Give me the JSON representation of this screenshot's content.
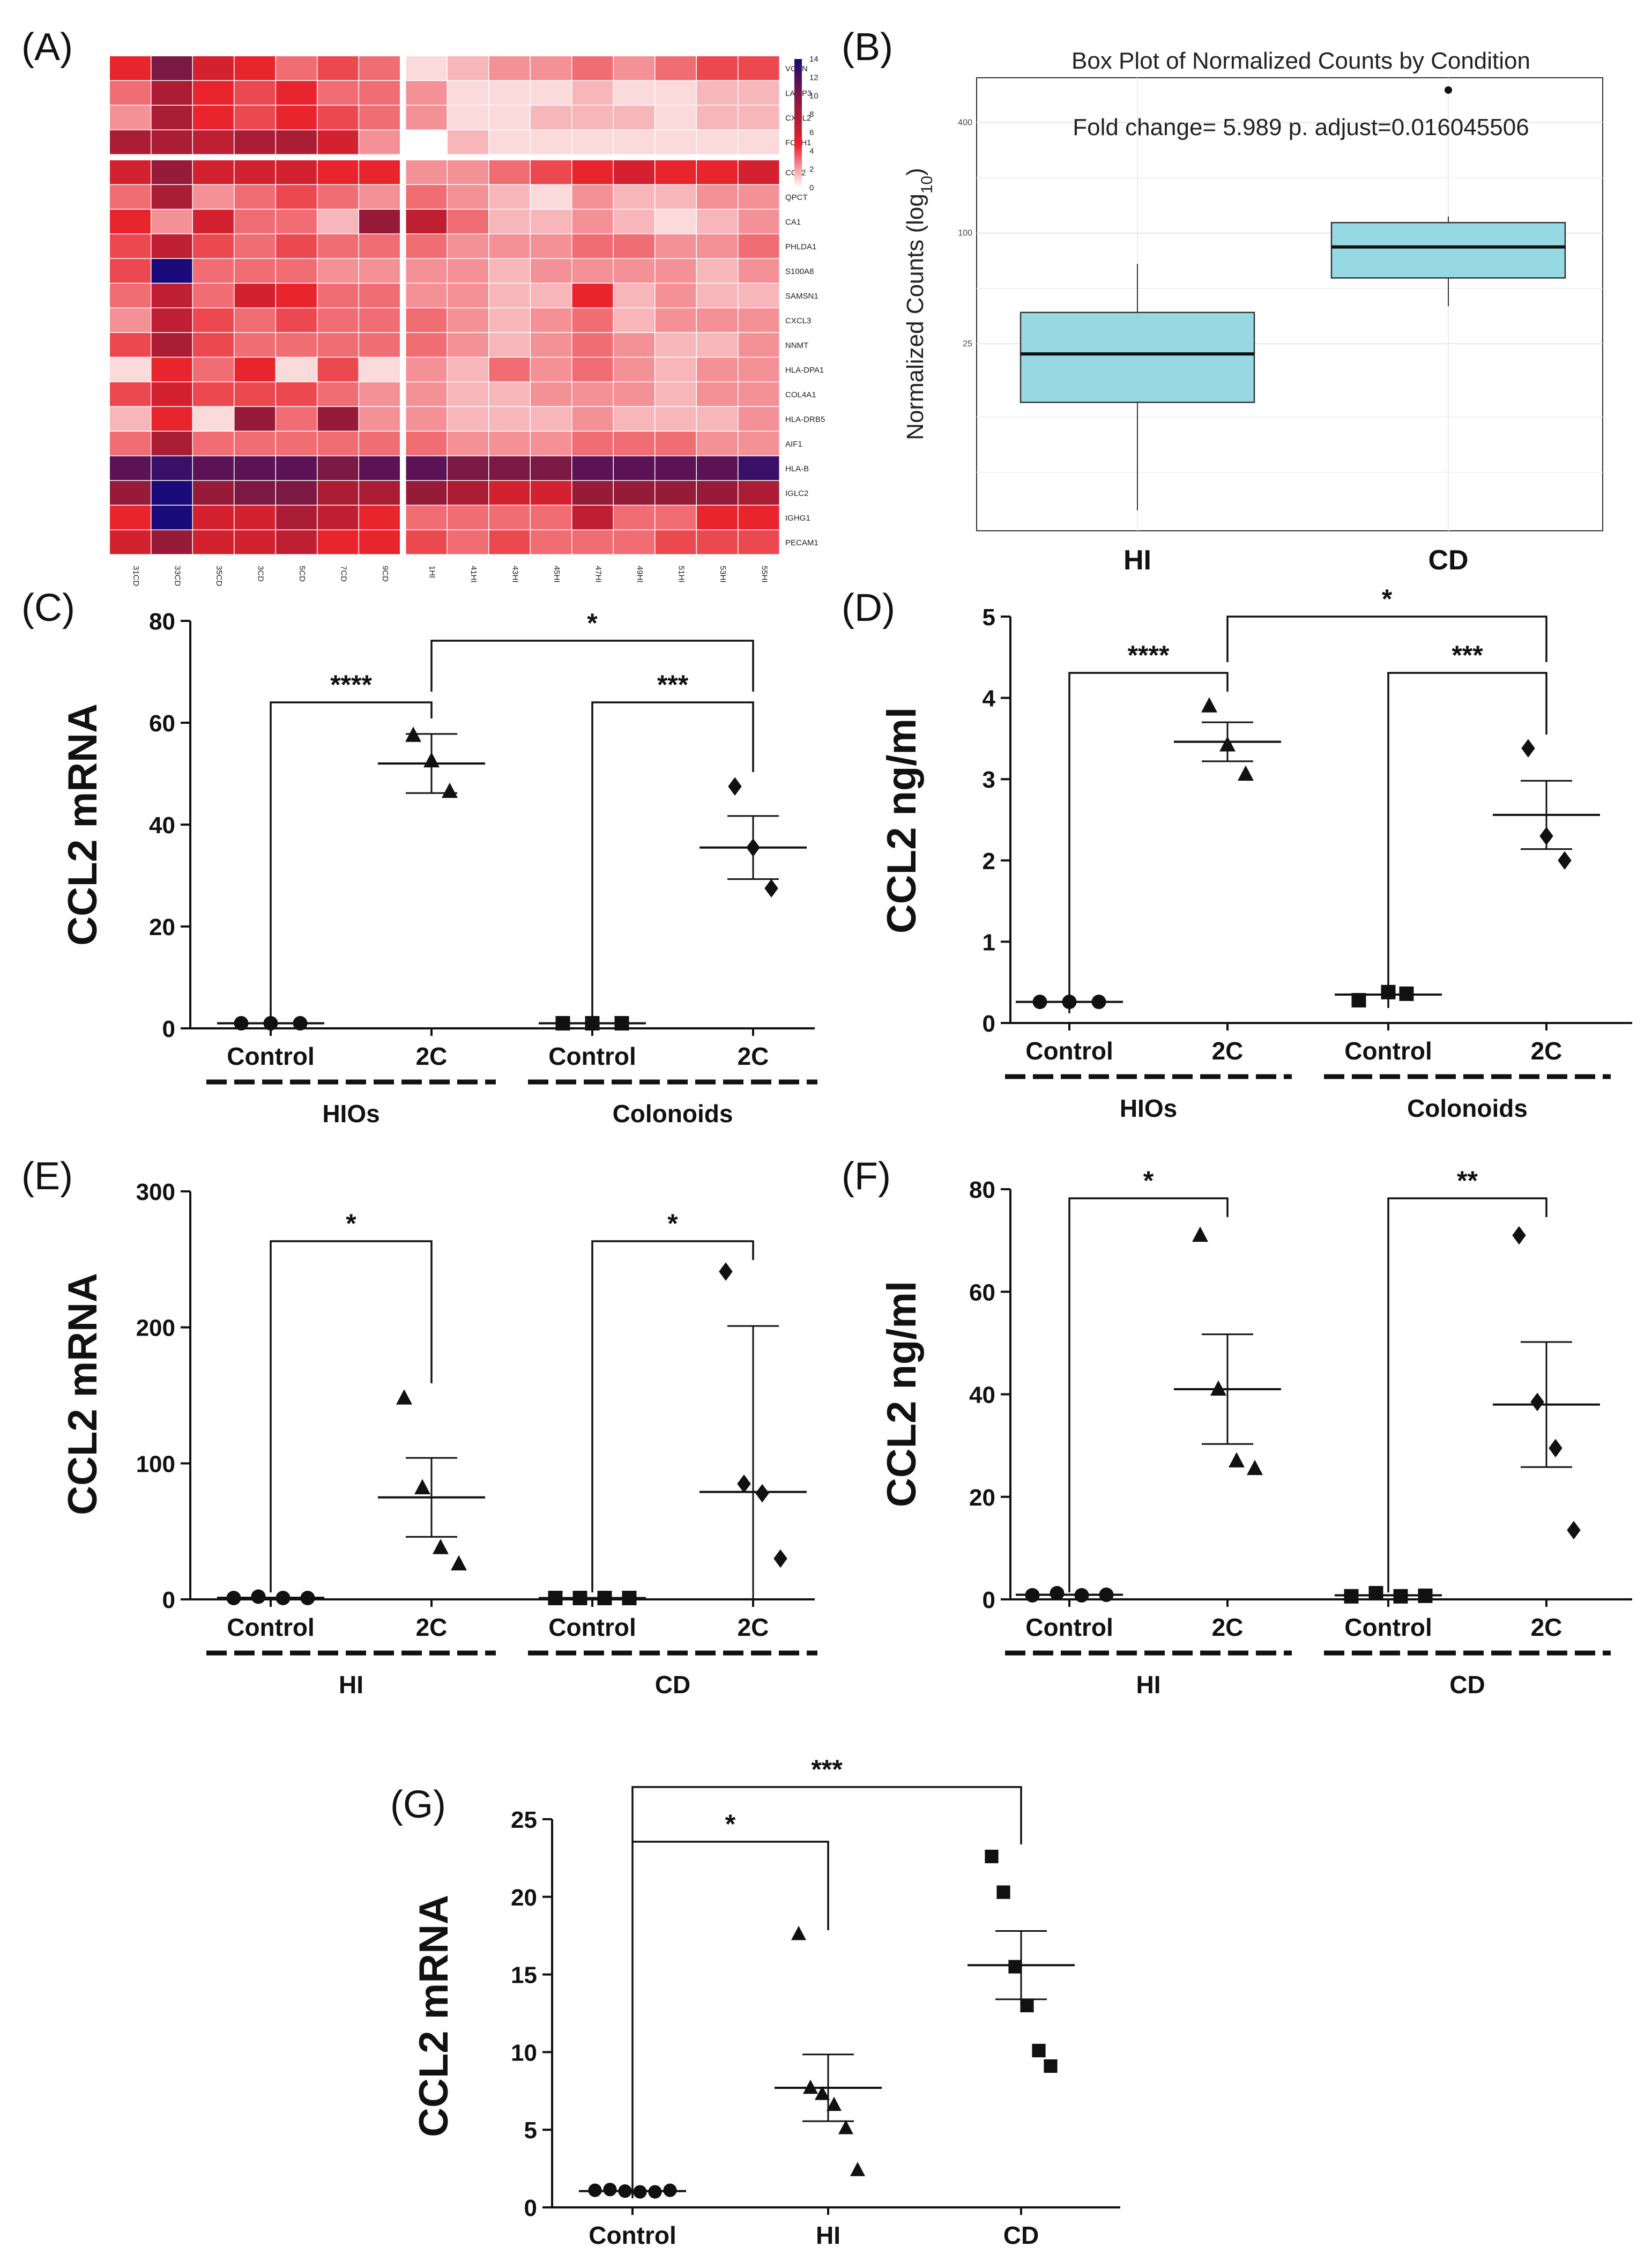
{
  "panel_letters": [
    "(A)",
    "(B)",
    "(C)",
    "(D)",
    "(E)",
    "(F)",
    "(G)"
  ],
  "chart_data": [
    {
      "panel": "(A)",
      "type": "heatmap",
      "rows": [
        "VCAN",
        "LAMP3",
        "CXCL2",
        "FOLH1",
        "CCL2",
        "QPCT",
        "CA1",
        "PHLDA1",
        "S100A8",
        "SAMSN1",
        "CXCL3",
        "NNMT",
        "HLA-DPA1",
        "COL4A1",
        "HLA-DRB5",
        "AIF1",
        "HLA-B",
        "IGLC2",
        "IGHG1",
        "PECAM1"
      ],
      "columns": [
        "31CD",
        "33CD",
        "35CD",
        "3CD",
        "5CD",
        "7CD",
        "9CD",
        "1HI",
        "41HI",
        "43HI",
        "45HI",
        "47HI",
        "49HI",
        "51HI",
        "53HI",
        "55HI"
      ],
      "colorbar": {
        "ticks": [
          0,
          2,
          4,
          6,
          8,
          10,
          12,
          14
        ],
        "colors": [
          "#ffffff",
          "#e8232c",
          "#8b1a3a",
          "#1a0a7a"
        ]
      },
      "values": [
        [
          6,
          11,
          7,
          6,
          4,
          5,
          4,
          1,
          2,
          3,
          3,
          4,
          3,
          4,
          5,
          5
        ],
        [
          4,
          9,
          6,
          5,
          6,
          4,
          4,
          3,
          1,
          1,
          1,
          2,
          1,
          1,
          2,
          2
        ],
        [
          3,
          9,
          6,
          5,
          6,
          5,
          4,
          3,
          1,
          1,
          2,
          2,
          2,
          1,
          2,
          2
        ],
        [
          9,
          9,
          8,
          9,
          9,
          7,
          3,
          0,
          2,
          1,
          1,
          1,
          1,
          1,
          1,
          1
        ],
        [
          7,
          10,
          7,
          7,
          7,
          6,
          6,
          3,
          3,
          4,
          5,
          6,
          7,
          6,
          6,
          7
        ],
        [
          4,
          9,
          3,
          4,
          5,
          4,
          3,
          4,
          3,
          2,
          1,
          3,
          2,
          2,
          3,
          3
        ],
        [
          6,
          3,
          7,
          4,
          4,
          2,
          10,
          8,
          4,
          2,
          2,
          3,
          2,
          1,
          2,
          3
        ],
        [
          5,
          8,
          5,
          4,
          5,
          4,
          4,
          4,
          3,
          3,
          3,
          4,
          4,
          3,
          3,
          4
        ],
        [
          5,
          14,
          4,
          4,
          4,
          3,
          3,
          3,
          3,
          2,
          3,
          3,
          3,
          3,
          2,
          3
        ],
        [
          4,
          8,
          4,
          7,
          6,
          4,
          4,
          3,
          3,
          2,
          2,
          6,
          2,
          3,
          2,
          2
        ],
        [
          3,
          8,
          5,
          4,
          5,
          4,
          4,
          4,
          3,
          2,
          3,
          4,
          2,
          3,
          3,
          3
        ],
        [
          5,
          9,
          5,
          4,
          4,
          4,
          4,
          4,
          3,
          2,
          3,
          4,
          3,
          2,
          2,
          3
        ],
        [
          1,
          6,
          4,
          6,
          1,
          5,
          1,
          3,
          2,
          4,
          3,
          4,
          3,
          2,
          3,
          3
        ],
        [
          5,
          7,
          5,
          5,
          5,
          4,
          3,
          3,
          2,
          2,
          3,
          3,
          3,
          2,
          3,
          3
        ],
        [
          2,
          6,
          1,
          10,
          4,
          10,
          3,
          3,
          2,
          2,
          2,
          3,
          2,
          2,
          2,
          3
        ],
        [
          4,
          9,
          4,
          4,
          4,
          4,
          4,
          4,
          3,
          3,
          3,
          4,
          4,
          4,
          3,
          3
        ],
        [
          12,
          13,
          12,
          12,
          12,
          11,
          12,
          12,
          11,
          11,
          11,
          12,
          12,
          12,
          12,
          13
        ],
        [
          10,
          14,
          10,
          11,
          11,
          9,
          9,
          10,
          9,
          7,
          7,
          10,
          10,
          10,
          10,
          9
        ],
        [
          6,
          14,
          7,
          7,
          9,
          8,
          6,
          4,
          4,
          4,
          4,
          8,
          4,
          4,
          6,
          6
        ],
        [
          7,
          10,
          7,
          7,
          8,
          6,
          6,
          5,
          4,
          5,
          4,
          4,
          4,
          5,
          5,
          5
        ]
      ]
    },
    {
      "panel": "(B)",
      "type": "box",
      "title": "Box Plot of Normalized Counts by Condition",
      "annotation": "Fold change= 5.989 p. adjust=0.016045506",
      "ylabel_main": "Normalized Counts (log",
      "ylabel_sub": "10",
      "ylabel_tail": ")",
      "yscale": "log10",
      "yticks": [
        "25",
        "100",
        "400"
      ],
      "categories": [
        "HI",
        "CD"
      ],
      "boxes": [
        {
          "name": "HI",
          "min": 3.1,
          "q1": 12,
          "median": 22,
          "q3": 37,
          "max": 68
        },
        {
          "name": "CD",
          "min": 40,
          "q1": 57,
          "median": 84,
          "q3": 114,
          "max": 123
        }
      ],
      "outliers": [
        {
          "category": "CD",
          "value": 600
        }
      ],
      "box_color": "#97d9e3"
    },
    {
      "panel": "(C)",
      "type": "scatter",
      "ylabel": "CCL2 mRNA",
      "ylim": [
        0,
        80
      ],
      "yticks": [
        0,
        20,
        40,
        60,
        80
      ],
      "categories": [
        "Control",
        "2C",
        "Control",
        "2C"
      ],
      "groups": [
        {
          "label": "HIOs"
        },
        {
          "label": "Colonoids"
        }
      ],
      "points": [
        [
          1,
          1,
          1
        ],
        [
          57.5,
          52.5,
          46.5
        ],
        [
          1,
          1,
          1
        ],
        [
          47.5,
          35.5,
          27.5
        ]
      ],
      "markers": [
        "circle",
        "triangle",
        "square",
        "diamond"
      ],
      "mean": [
        1,
        52,
        1,
        35.5
      ],
      "sem": [
        0.3,
        5.8,
        0.3,
        6.2
      ],
      "comparisons": [
        {
          "from": 0,
          "to": 1,
          "label": "****"
        },
        {
          "from": 2,
          "to": 3,
          "label": "***"
        },
        {
          "from": 1,
          "to": 3,
          "label": "*"
        }
      ]
    },
    {
      "panel": "(D)",
      "type": "scatter",
      "ylabel": "CCL2 ng/ml",
      "ylim": [
        0,
        5
      ],
      "yticks": [
        0,
        1,
        2,
        3,
        4,
        5
      ],
      "categories": [
        "Control",
        "2C",
        "Control",
        "2C"
      ],
      "groups": [
        {
          "label": "HIOs"
        },
        {
          "label": "Colonoids"
        }
      ],
      "points": [
        [
          0.26,
          0.26,
          0.26
        ],
        [
          3.9,
          3.42,
          3.06
        ],
        [
          0.28,
          0.38,
          0.36
        ],
        [
          3.38,
          2.3,
          2.0
        ]
      ],
      "markers": [
        "circle",
        "triangle",
        "square",
        "diamond"
      ],
      "mean": [
        0.26,
        3.46,
        0.35,
        2.56
      ],
      "sem": [
        0.01,
        0.24,
        0.03,
        0.42
      ],
      "comparisons": [
        {
          "from": 0,
          "to": 1,
          "label": "****"
        },
        {
          "from": 2,
          "to": 3,
          "label": "***"
        },
        {
          "from": 1,
          "to": 3,
          "label": "*"
        }
      ]
    },
    {
      "panel": "(E)",
      "type": "scatter",
      "ylabel": "CCL2 mRNA",
      "ylim": [
        0,
        300
      ],
      "yticks": [
        0,
        100,
        200,
        300
      ],
      "categories": [
        "Control",
        "2C",
        "Control",
        "2C"
      ],
      "groups": [
        {
          "label": "HI"
        },
        {
          "label": "CD"
        }
      ],
      "points": [
        [
          1,
          2,
          1,
          1
        ],
        [
          148,
          82,
          38,
          26
        ],
        [
          1,
          1,
          1,
          1
        ],
        [
          241,
          85,
          78,
          30
        ]
      ],
      "markers": [
        "circle",
        "triangle",
        "square",
        "diamond"
      ],
      "mean": [
        1.2,
        75,
        1,
        79
      ],
      "sem": [
        0.3,
        29,
        0.1,
        122
      ],
      "comparisons": [
        {
          "from": 0,
          "to": 1,
          "label": "*"
        },
        {
          "from": 2,
          "to": 3,
          "label": "*"
        }
      ]
    },
    {
      "panel": "(F)",
      "type": "scatter",
      "ylabel": "CCL2 ng/ml",
      "ylim": [
        0,
        80
      ],
      "yticks": [
        0,
        20,
        40,
        60,
        80
      ],
      "categories": [
        "Control",
        "2C",
        "Control",
        "2C"
      ],
      "groups": [
        {
          "label": "HI"
        },
        {
          "label": "CD"
        }
      ],
      "points": [
        [
          0.8,
          1.2,
          0.8,
          0.9
        ],
        [
          71,
          41,
          27,
          25.5
        ],
        [
          0.6,
          1.2,
          0.6,
          0.7
        ],
        [
          71,
          38.5,
          29.5,
          13.5
        ]
      ],
      "markers": [
        "circle",
        "triangle",
        "square",
        "diamond"
      ],
      "mean": [
        0.9,
        41,
        0.8,
        38
      ],
      "sem": [
        0.1,
        10.7,
        0.15,
        12.2
      ],
      "comparisons": [
        {
          "from": 0,
          "to": 1,
          "label": "*"
        },
        {
          "from": 2,
          "to": 3,
          "label": "**"
        }
      ]
    },
    {
      "panel": "(G)",
      "type": "scatter",
      "ylabel": "CCL2 mRNA",
      "ylim": [
        0,
        25
      ],
      "yticks": [
        0,
        5,
        10,
        15,
        20,
        25
      ],
      "categories": [
        "Control",
        "HI",
        "CD"
      ],
      "points": [
        [
          1.1,
          1.15,
          1.05,
          1.0,
          1.0,
          1.1
        ],
        [
          17.6,
          7.7,
          7.3,
          6.6,
          5.1,
          2.4
        ],
        [
          22.6,
          20.3,
          15.5,
          13.0,
          10.1,
          9.1
        ]
      ],
      "markers": [
        "circle",
        "triangle",
        "square"
      ],
      "mean": [
        1.05,
        7.7,
        15.6
      ],
      "sem": [
        0.05,
        2.15,
        2.2
      ],
      "comparisons": [
        {
          "from": 0,
          "to": 1,
          "label": "*"
        },
        {
          "from": 0,
          "to": 2,
          "label": "***"
        }
      ]
    }
  ]
}
